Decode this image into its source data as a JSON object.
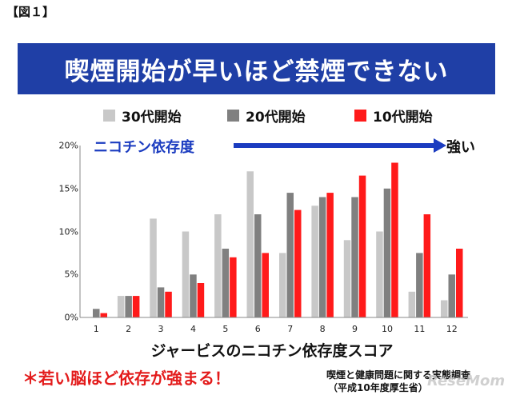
{
  "figure_label": "【図１】",
  "title": "喫煙開始が早いほど禁煙できない",
  "arrow": {
    "label": "ニコチン依存度",
    "end_label": "強い",
    "color": "#1b3cc0"
  },
  "note": "＊若い脳ほど依存が強まる！",
  "source": {
    "line1": "喫煙と健康問題に関する実態調査",
    "line2": "（平成10年度厚生省）"
  },
  "watermark": "ReseMom",
  "colors": {
    "title_band": "#1f3fa6",
    "note": "#e31b1b"
  },
  "chart_data": {
    "type": "bar",
    "title": "喫煙開始が早いほど禁煙できない",
    "xlabel": "ジャービスのニコチン依存度スコア",
    "ylabel": "",
    "categories": [
      "1",
      "2",
      "3",
      "4",
      "5",
      "6",
      "7",
      "8",
      "9",
      "10",
      "11",
      "12"
    ],
    "yticks": [
      "0%",
      "5%",
      "10%",
      "15%",
      "20%"
    ],
    "ylim": [
      0,
      20
    ],
    "legend_position": "top",
    "grid": false,
    "series": [
      {
        "name": "30代開始",
        "color": "#c8c8c8",
        "values": [
          0,
          2.5,
          11.5,
          10,
          12,
          17,
          7.5,
          13,
          9,
          10,
          3,
          2
        ]
      },
      {
        "name": "20代開始",
        "color": "#808080",
        "values": [
          1,
          2.5,
          3.5,
          5,
          8,
          12,
          14.5,
          14,
          14,
          15,
          7.5,
          5
        ]
      },
      {
        "name": "10代開始",
        "color": "#ff1a1a",
        "values": [
          0.5,
          2.5,
          3,
          4,
          7,
          7.5,
          12.5,
          14.5,
          16.5,
          18,
          12,
          8
        ]
      }
    ]
  }
}
